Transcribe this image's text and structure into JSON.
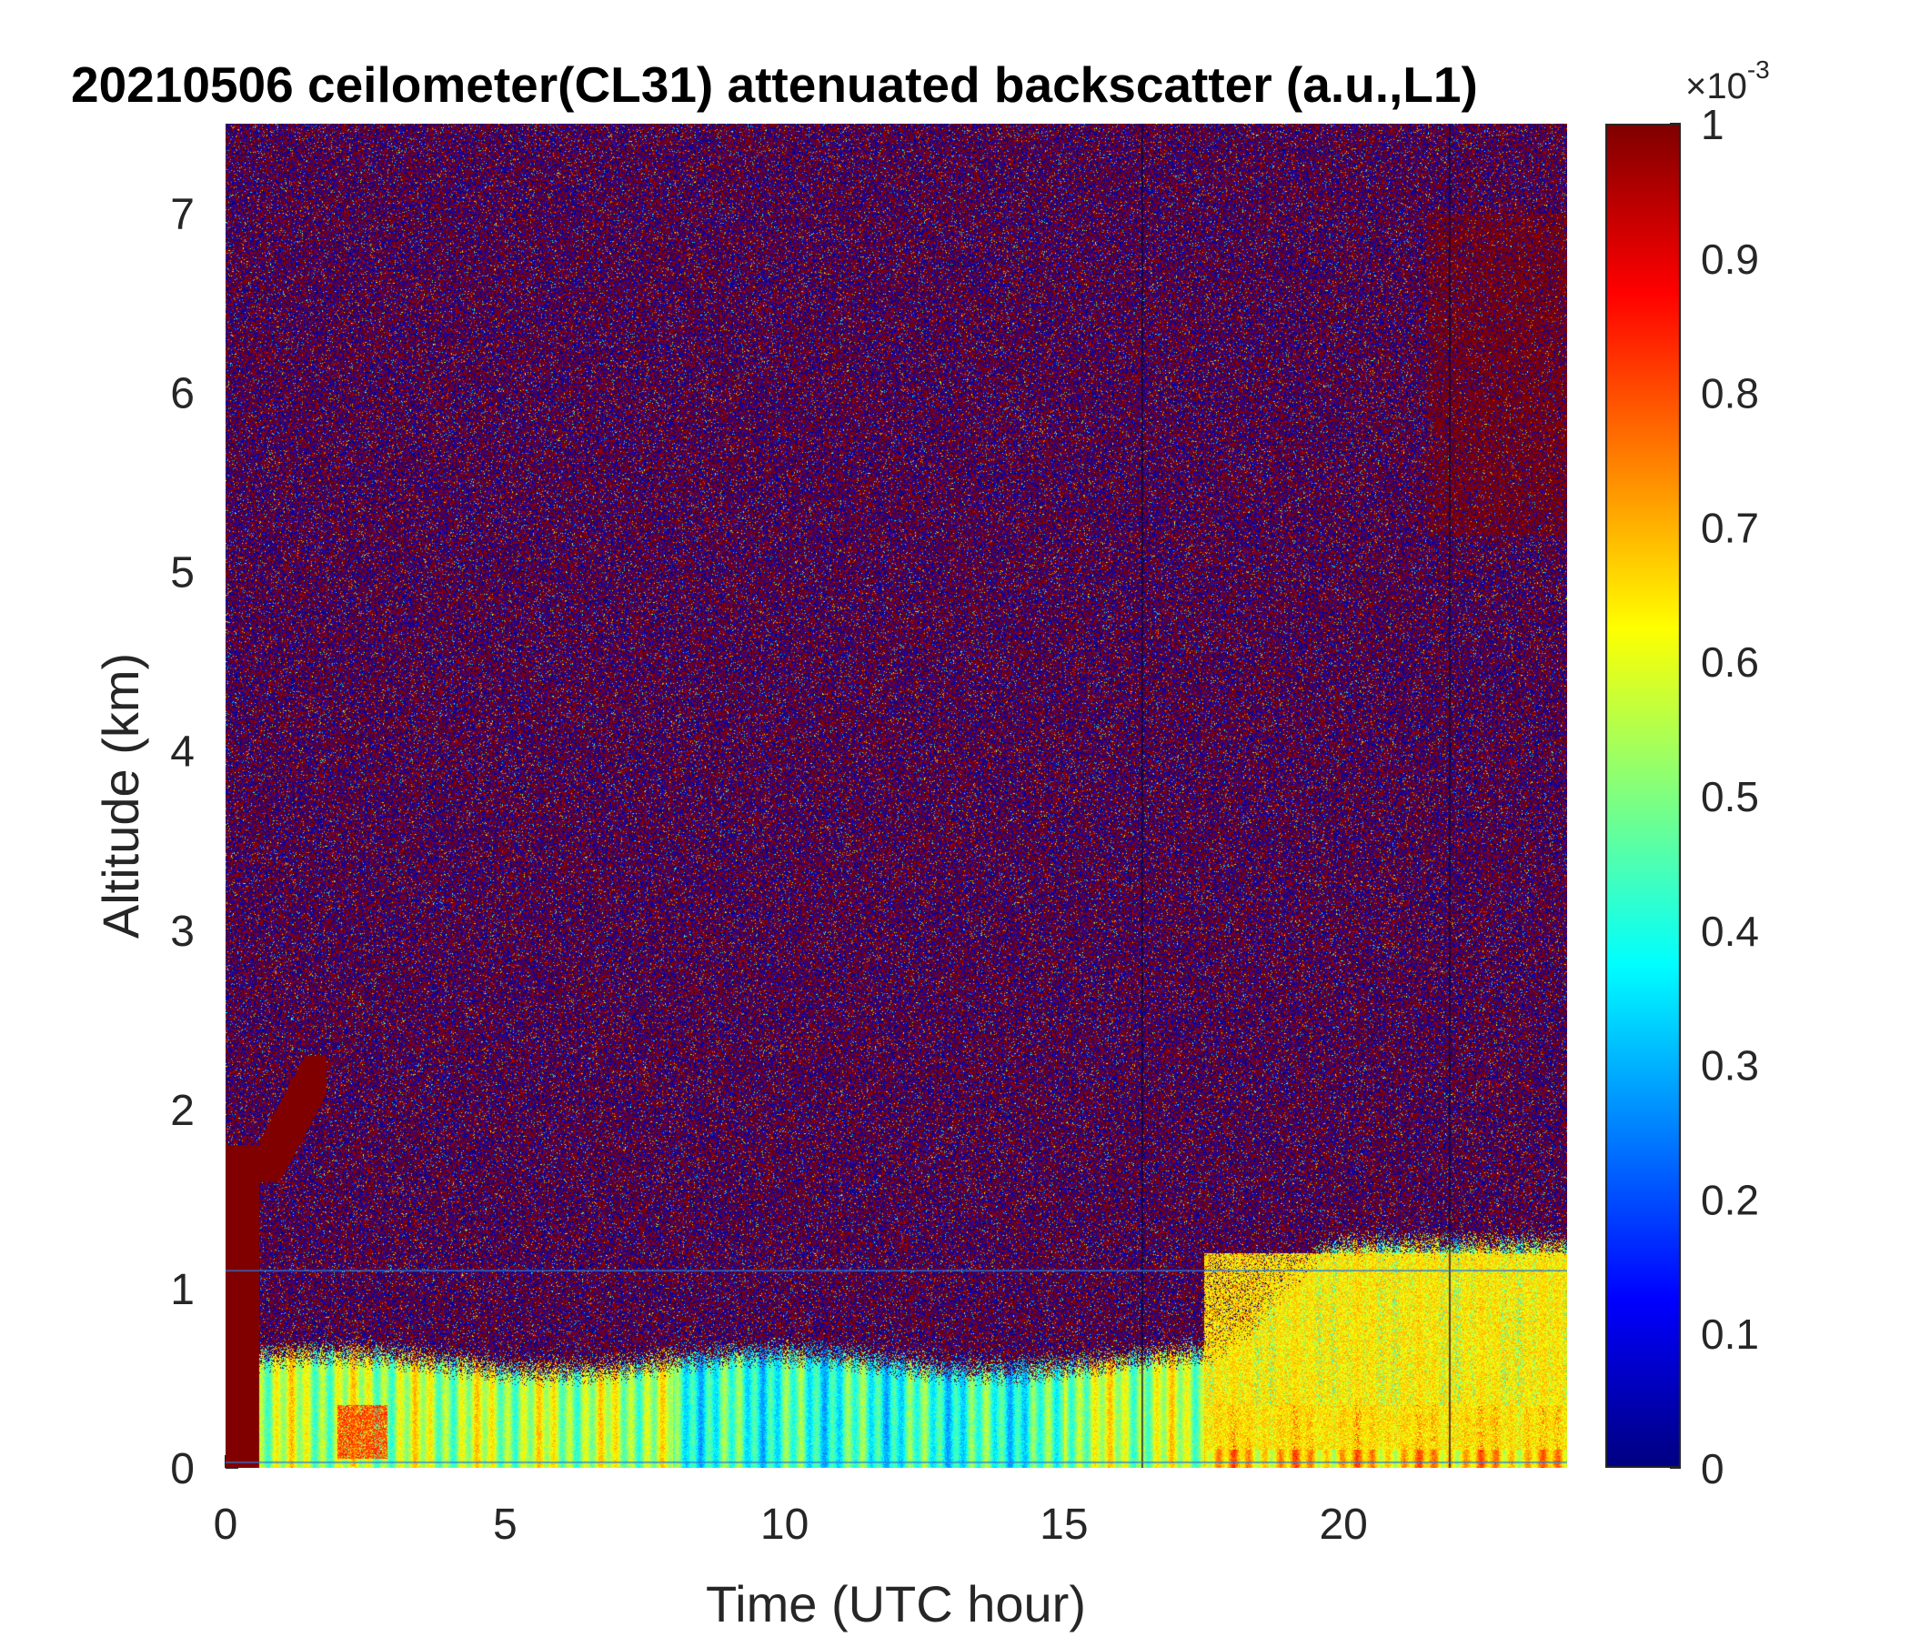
{
  "chart_data": {
    "type": "heatmap",
    "title": "20210506 ceilometer(CL31) attenuated backscatter (a.u.,L1)",
    "xlabel": "Time (UTC hour)",
    "ylabel": "Altitude (km)",
    "xlim": [
      0,
      24
    ],
    "ylim": [
      0,
      7.5
    ],
    "x_ticks": [
      0,
      5,
      10,
      15,
      20
    ],
    "x_tick_labels": [
      "0",
      "5",
      "10",
      "15",
      "20"
    ],
    "y_ticks": [
      0,
      1,
      2,
      3,
      4,
      5,
      6,
      7
    ],
    "y_tick_labels": [
      "0",
      "1",
      "2",
      "3",
      "4",
      "5",
      "6",
      "7"
    ],
    "grid": false,
    "colorbar": {
      "colormap": "jet",
      "clim": [
        0,
        1
      ],
      "exponent_label": "×10",
      "exponent_power": "-3",
      "ticks": [
        0,
        0.1,
        0.2,
        0.3,
        0.4,
        0.5,
        0.6,
        0.7,
        0.8,
        0.9,
        1
      ],
      "tick_labels": [
        "0",
        "0.1",
        "0.2",
        "0.3",
        "0.4",
        "0.5",
        "0.6",
        "0.7",
        "0.8",
        "0.9",
        "1"
      ]
    },
    "features": [
      {
        "description": "saturated cloud/precip column",
        "x_range": [
          0,
          0.6
        ],
        "y_range": [
          0,
          1.8
        ],
        "value": 1.0
      },
      {
        "description": "rising cloud layer",
        "x_range": [
          0.6,
          1.8
        ],
        "y_range": [
          1.6,
          2.3
        ],
        "value": 1.0
      },
      {
        "description": "boundary layer aerosol",
        "x_range": [
          0.6,
          24
        ],
        "y_range": [
          0,
          0.6
        ],
        "value": 0.55
      },
      {
        "description": "enhanced aerosol patch",
        "x_range": [
          2,
          2.9
        ],
        "y_range": [
          0.05,
          0.35
        ],
        "value": 0.8
      },
      {
        "description": "afternoon mixed layer",
        "x_range": [
          17.5,
          24
        ],
        "y_range": [
          0.1,
          1.2
        ],
        "value": 0.65
      },
      {
        "description": "upper level layer",
        "x_range": [
          21.5,
          24
        ],
        "y_range": [
          5.2,
          7.0
        ],
        "value": 1.0
      }
    ],
    "vertical_lines_x": [
      16.4,
      21.9
    ],
    "horizontal_lines_y": [
      0.03,
      1.1
    ]
  }
}
